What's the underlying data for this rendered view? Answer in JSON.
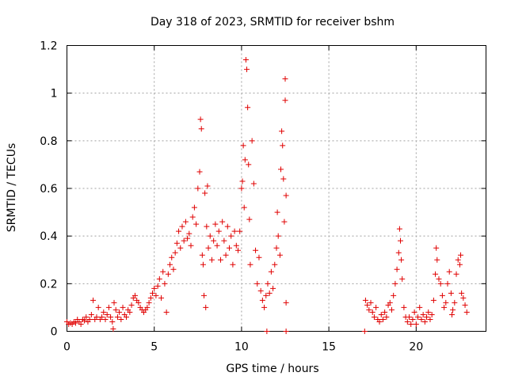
{
  "chart_data": {
    "type": "scatter",
    "title": "Day 318 of 2023, SRMTID for receiver bshm",
    "xlabel": "GPS time / hours",
    "ylabel": "SRMTID / TECUs",
    "xlim": [
      0,
      24
    ],
    "ylim": [
      0,
      1.2
    ],
    "xticks": [
      0,
      5,
      10,
      15,
      20
    ],
    "yticks": [
      0,
      0.2,
      0.4,
      0.6,
      0.8,
      1,
      1.2
    ],
    "xtick_labels": [
      "0",
      "5",
      "10",
      "15",
      "20"
    ],
    "ytick_labels": [
      "0",
      "0.2",
      "0.4",
      "0.6",
      "0.8",
      "1",
      "1.2"
    ],
    "grid": true,
    "marker": "+",
    "color": "#e00000",
    "series": [
      {
        "name": "bshm",
        "points": [
          [
            0.0,
            0.04
          ],
          [
            0.1,
            0.03
          ],
          [
            0.2,
            0.035
          ],
          [
            0.3,
            0.03
          ],
          [
            0.4,
            0.04
          ],
          [
            0.5,
            0.035
          ],
          [
            0.6,
            0.05
          ],
          [
            0.7,
            0.04
          ],
          [
            0.8,
            0.03
          ],
          [
            0.9,
            0.05
          ],
          [
            1.0,
            0.045
          ],
          [
            1.1,
            0.06
          ],
          [
            1.2,
            0.04
          ],
          [
            1.3,
            0.05
          ],
          [
            1.4,
            0.07
          ],
          [
            1.5,
            0.13
          ],
          [
            1.6,
            0.05
          ],
          [
            1.7,
            0.06
          ],
          [
            1.8,
            0.1
          ],
          [
            1.9,
            0.05
          ],
          [
            2.0,
            0.06
          ],
          [
            2.1,
            0.08
          ],
          [
            2.2,
            0.05
          ],
          [
            2.3,
            0.07
          ],
          [
            2.4,
            0.1
          ],
          [
            2.5,
            0.06
          ],
          [
            2.6,
            0.04
          ],
          [
            2.65,
            0.01
          ],
          [
            2.7,
            0.12
          ],
          [
            2.8,
            0.09
          ],
          [
            2.9,
            0.06
          ],
          [
            3.0,
            0.08
          ],
          [
            3.1,
            0.05
          ],
          [
            3.2,
            0.1
          ],
          [
            3.3,
            0.07
          ],
          [
            3.4,
            0.06
          ],
          [
            3.5,
            0.09
          ],
          [
            3.6,
            0.08
          ],
          [
            3.7,
            0.11
          ],
          [
            3.8,
            0.14
          ],
          [
            3.9,
            0.15
          ],
          [
            4.0,
            0.13
          ],
          [
            4.1,
            0.12
          ],
          [
            4.2,
            0.1
          ],
          [
            4.3,
            0.09
          ],
          [
            4.4,
            0.08
          ],
          [
            4.5,
            0.09
          ],
          [
            4.6,
            0.1
          ],
          [
            4.7,
            0.12
          ],
          [
            4.8,
            0.14
          ],
          [
            4.9,
            0.16
          ],
          [
            5.0,
            0.18
          ],
          [
            5.1,
            0.15
          ],
          [
            5.2,
            0.19
          ],
          [
            5.3,
            0.22
          ],
          [
            5.4,
            0.14
          ],
          [
            5.5,
            0.25
          ],
          [
            5.6,
            0.2
          ],
          [
            5.7,
            0.08
          ],
          [
            5.8,
            0.24
          ],
          [
            5.9,
            0.28
          ],
          [
            6.0,
            0.31
          ],
          [
            6.1,
            0.26
          ],
          [
            6.2,
            0.33
          ],
          [
            6.3,
            0.37
          ],
          [
            6.4,
            0.42
          ],
          [
            6.5,
            0.35
          ],
          [
            6.6,
            0.44
          ],
          [
            6.7,
            0.38
          ],
          [
            6.8,
            0.46
          ],
          [
            6.9,
            0.39
          ],
          [
            7.0,
            0.41
          ],
          [
            7.1,
            0.36
          ],
          [
            7.2,
            0.48
          ],
          [
            7.3,
            0.52
          ],
          [
            7.4,
            0.45
          ],
          [
            7.5,
            0.6
          ],
          [
            7.6,
            0.67
          ],
          [
            7.65,
            0.89
          ],
          [
            7.7,
            0.85
          ],
          [
            7.75,
            0.32
          ],
          [
            7.8,
            0.28
          ],
          [
            7.85,
            0.15
          ],
          [
            7.9,
            0.58
          ],
          [
            7.95,
            0.1
          ],
          [
            8.0,
            0.44
          ],
          [
            8.05,
            0.61
          ],
          [
            8.1,
            0.35
          ],
          [
            8.2,
            0.4
          ],
          [
            8.3,
            0.3
          ],
          [
            8.4,
            0.38
          ],
          [
            8.5,
            0.45
          ],
          [
            8.6,
            0.36
          ],
          [
            8.7,
            0.42
          ],
          [
            8.8,
            0.3
          ],
          [
            8.9,
            0.46
          ],
          [
            9.0,
            0.38
          ],
          [
            9.1,
            0.32
          ],
          [
            9.2,
            0.44
          ],
          [
            9.3,
            0.35
          ],
          [
            9.4,
            0.4
          ],
          [
            9.5,
            0.28
          ],
          [
            9.6,
            0.42
          ],
          [
            9.7,
            0.36
          ],
          [
            9.8,
            0.34
          ],
          [
            9.9,
            0.42
          ],
          [
            10.0,
            0.6
          ],
          [
            10.05,
            0.63
          ],
          [
            10.1,
            0.78
          ],
          [
            10.15,
            0.52
          ],
          [
            10.2,
            0.72
          ],
          [
            10.25,
            1.14
          ],
          [
            10.3,
            1.1
          ],
          [
            10.35,
            0.94
          ],
          [
            10.4,
            0.7
          ],
          [
            10.45,
            0.47
          ],
          [
            10.5,
            0.28
          ],
          [
            10.6,
            0.8
          ],
          [
            10.7,
            0.62
          ],
          [
            10.8,
            0.34
          ],
          [
            10.9,
            0.2
          ],
          [
            11.0,
            0.31
          ],
          [
            11.1,
            0.17
          ],
          [
            11.2,
            0.13
          ],
          [
            11.3,
            0.1
          ],
          [
            11.4,
            0.15
          ],
          [
            11.45,
            0.0
          ],
          [
            11.5,
            0.2
          ],
          [
            11.6,
            0.16
          ],
          [
            11.7,
            0.25
          ],
          [
            11.8,
            0.18
          ],
          [
            11.9,
            0.28
          ],
          [
            12.0,
            0.35
          ],
          [
            12.05,
            0.5
          ],
          [
            12.1,
            0.4
          ],
          [
            12.2,
            0.32
          ],
          [
            12.25,
            0.68
          ],
          [
            12.3,
            0.84
          ],
          [
            12.35,
            0.78
          ],
          [
            12.4,
            0.64
          ],
          [
            12.45,
            0.46
          ],
          [
            12.5,
            1.06
          ],
          [
            12.5,
            0.97
          ],
          [
            12.55,
            0.57
          ],
          [
            12.55,
            0.12
          ],
          [
            12.55,
            0.0
          ],
          [
            17.05,
            0.0
          ],
          [
            17.1,
            0.13
          ],
          [
            17.2,
            0.11
          ],
          [
            17.3,
            0.09
          ],
          [
            17.4,
            0.12
          ],
          [
            17.5,
            0.08
          ],
          [
            17.6,
            0.06
          ],
          [
            17.7,
            0.1
          ],
          [
            17.8,
            0.05
          ],
          [
            17.9,
            0.04
          ],
          [
            18.0,
            0.07
          ],
          [
            18.1,
            0.05
          ],
          [
            18.2,
            0.08
          ],
          [
            18.3,
            0.06
          ],
          [
            18.4,
            0.11
          ],
          [
            18.5,
            0.12
          ],
          [
            18.6,
            0.09
          ],
          [
            18.7,
            0.15
          ],
          [
            18.8,
            0.2
          ],
          [
            18.9,
            0.26
          ],
          [
            19.0,
            0.33
          ],
          [
            19.05,
            0.43
          ],
          [
            19.1,
            0.38
          ],
          [
            19.15,
            0.3
          ],
          [
            19.2,
            0.22
          ],
          [
            19.3,
            0.1
          ],
          [
            19.4,
            0.06
          ],
          [
            19.5,
            0.04
          ],
          [
            19.6,
            0.06
          ],
          [
            19.7,
            0.03
          ],
          [
            19.8,
            0.05
          ],
          [
            19.9,
            0.08
          ],
          [
            20.0,
            0.03
          ],
          [
            20.1,
            0.06
          ],
          [
            20.2,
            0.1
          ],
          [
            20.3,
            0.05
          ],
          [
            20.4,
            0.07
          ],
          [
            20.5,
            0.04
          ],
          [
            20.6,
            0.06
          ],
          [
            20.7,
            0.08
          ],
          [
            20.8,
            0.05
          ],
          [
            20.9,
            0.07
          ],
          [
            21.0,
            0.13
          ],
          [
            21.1,
            0.24
          ],
          [
            21.15,
            0.35
          ],
          [
            21.2,
            0.3
          ],
          [
            21.3,
            0.22
          ],
          [
            21.4,
            0.2
          ],
          [
            21.5,
            0.15
          ],
          [
            21.6,
            0.1
          ],
          [
            21.7,
            0.12
          ],
          [
            21.8,
            0.2
          ],
          [
            21.9,
            0.25
          ],
          [
            22.0,
            0.16
          ],
          [
            22.05,
            0.07
          ],
          [
            22.1,
            0.09
          ],
          [
            22.2,
            0.12
          ],
          [
            22.3,
            0.24
          ],
          [
            22.4,
            0.3
          ],
          [
            22.5,
            0.28
          ],
          [
            22.55,
            0.32
          ],
          [
            22.6,
            0.16
          ],
          [
            22.7,
            0.14
          ],
          [
            22.8,
            0.11
          ],
          [
            22.9,
            0.08
          ]
        ]
      }
    ]
  }
}
